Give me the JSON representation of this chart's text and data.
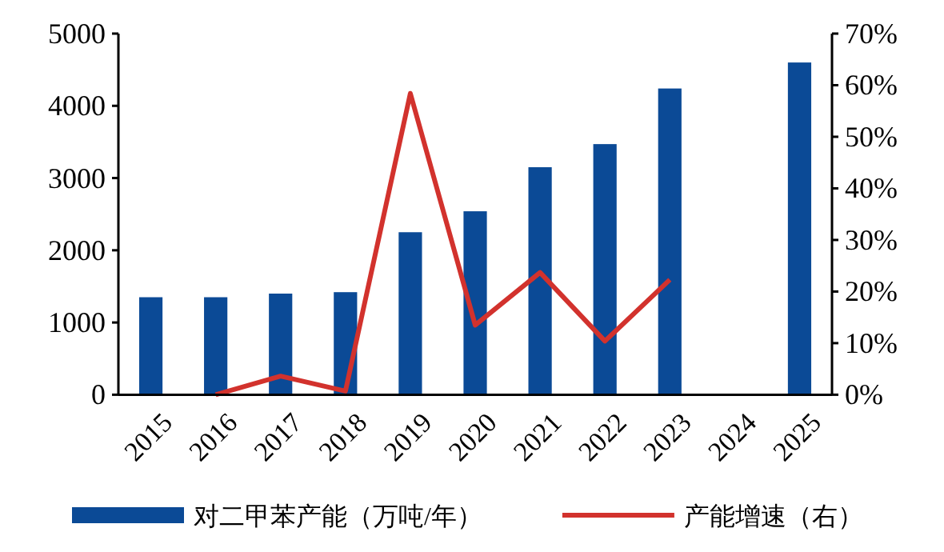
{
  "chart_data": {
    "type": "bar",
    "categories": [
      "2015",
      "2016",
      "2017",
      "2018",
      "2019",
      "2020",
      "2021",
      "2022",
      "2023",
      "2024",
      "2025"
    ],
    "series": [
      {
        "name": "对二甲苯产能（万吨/年）",
        "color": "#0b4a96",
        "values": [
          1350,
          1350,
          1400,
          1420,
          2250,
          2540,
          3150,
          3470,
          4240,
          null,
          4600
        ]
      },
      {
        "name": "产能增速（右）",
        "type": "line",
        "axis": "y2",
        "color": "#d2322d",
        "values": [
          null,
          0,
          3.6,
          0.7,
          58.4,
          13.5,
          23.7,
          10.4,
          22.3,
          null,
          null
        ]
      }
    ],
    "ylim": [
      0,
      5000
    ],
    "yticks": [
      0,
      1000,
      2000,
      3000,
      4000,
      5000
    ],
    "y2lim": [
      0,
      70
    ],
    "y2ticks": [
      {
        "value": 0,
        "label": "0%"
      },
      {
        "value": 10,
        "label": "10%"
      },
      {
        "value": 20,
        "label": "20%"
      },
      {
        "value": 30,
        "label": "30%"
      },
      {
        "value": 40,
        "label": "40%"
      },
      {
        "value": 50,
        "label": "50%"
      },
      {
        "value": 60,
        "label": "60%"
      },
      {
        "value": 70,
        "label": "70%"
      }
    ],
    "legend": "bottom",
    "marker": "none",
    "line_style": "solid",
    "grid": false
  }
}
